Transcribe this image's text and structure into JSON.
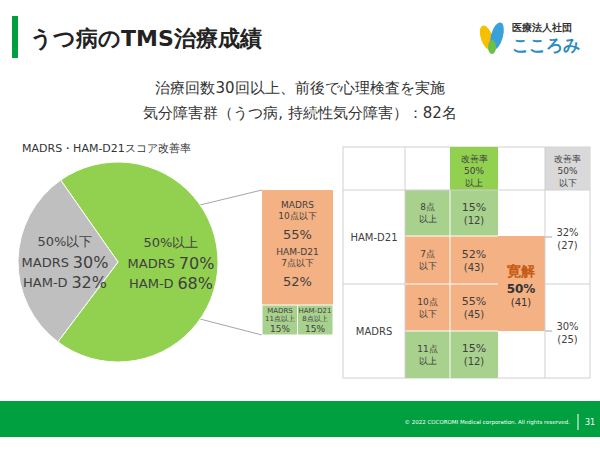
{
  "header": {
    "title": "うつ病のTMS治療成績",
    "logo": {
      "org": "医療法人社団",
      "name": "こころみ"
    }
  },
  "subtitle": [
    "治療回数30回以上、前後で心理検査を実施",
    "気分障害群（うつ病, 持続性気分障害）：82名"
  ],
  "chart_data": {
    "type": "pie",
    "title": "MADRS・HAM-D21スコア改善率",
    "categories": [
      "50%以上",
      "50%以下"
    ],
    "colors": [
      "#92d050",
      "#bfbfbf"
    ],
    "series": [
      {
        "name": "MADRS",
        "values": [
          70,
          30
        ],
        "value_labels": [
          "70%",
          "30%"
        ]
      },
      {
        "name": "HAM-D",
        "values": [
          68,
          32
        ],
        "value_labels": [
          "68%",
          "32%"
        ]
      }
    ],
    "data_labels": true
  },
  "breakdown": {
    "upper": [
      {
        "name": "MADRS",
        "threshold": "10点以下",
        "percent": "55%"
      },
      {
        "name": "HAM-D21",
        "threshold": "7点以下",
        "percent": "52%"
      }
    ],
    "lower": [
      {
        "name": "MADRS",
        "threshold": "11点以上",
        "percent": "15%"
      },
      {
        "name": "HAM-D21",
        "threshold": "8点以上",
        "percent": "15%"
      }
    ]
  },
  "table": {
    "header_above": [
      "改善率",
      "50%",
      "以上"
    ],
    "header_below": [
      "改善率",
      "50%",
      "以下"
    ],
    "groups": [
      {
        "name": "HAM-D21",
        "rows": [
          {
            "threshold": [
              "8点",
              "以上"
            ],
            "percent": "15%",
            "count": "(12)"
          },
          {
            "threshold": [
              "7点",
              "以下"
            ],
            "percent": "52%",
            "count": "(43)"
          }
        ],
        "below": {
          "percent": "32%",
          "count": "(27)"
        }
      },
      {
        "name": "MADRS",
        "rows": [
          {
            "threshold": [
              "10点",
              "以下"
            ],
            "percent": "55%",
            "count": "(45)"
          },
          {
            "threshold": [
              "11点",
              "以上"
            ],
            "percent": "15%",
            "count": "(12)"
          }
        ],
        "below": {
          "percent": "30%",
          "count": "(25)"
        }
      }
    ],
    "remission": {
      "label": "寛解",
      "percent": "50%",
      "count": "(41)"
    }
  },
  "footer": {
    "copyright": "© 2022 COCOROMI Medical corporation. All rights reserved.",
    "page": "31"
  }
}
